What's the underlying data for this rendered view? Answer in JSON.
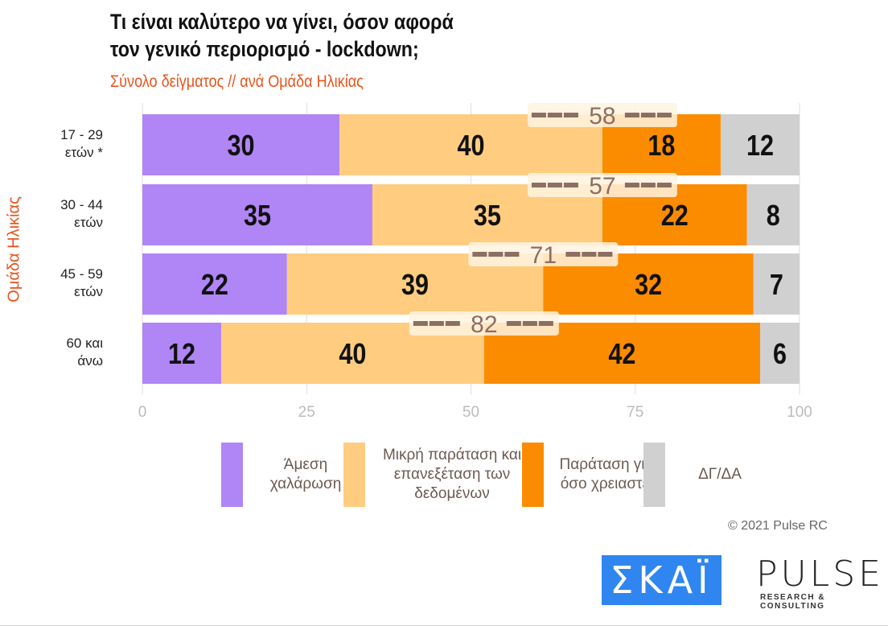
{
  "title_line1": "Τι είναι καλύτερο να γίνει, όσον αφορά",
  "title_line2": "τον γενικό περιορισμό - lockdown;",
  "subtitle": "Σύνολο δείγματος // ανά Ομάδα Ηλικίας",
  "copyright": "© 2021 Pulse RC",
  "logos": {
    "skai": "ΣΚΑΪ",
    "pulse": "PULSE",
    "pulse_sub": "RESEARCH & CONSULTING",
    "watermark": "PULSE"
  },
  "chart_data": {
    "type": "bar",
    "orientation": "horizontal",
    "stacked": true,
    "ylabel": "Ομάδα Ηλικίας",
    "categories": [
      "17 - 29\nετών *",
      "30 - 44\nετών",
      "45 - 59\nετών",
      "60 και\nάνω"
    ],
    "series": [
      {
        "name": "Άμεση χαλάρωση",
        "color": "#b085f5",
        "values": [
          30,
          35,
          22,
          12
        ]
      },
      {
        "name": "Μικρή παράταση και επανεξέταση των δεδομένων",
        "color": "#ffcc80",
        "values": [
          40,
          35,
          39,
          40
        ]
      },
      {
        "name": "Παράταση για όσο χρειαστεί",
        "color": "#fb8c00",
        "values": [
          18,
          22,
          32,
          42
        ]
      },
      {
        "name": "ΔΓ/ΔΑ",
        "color": "#d0d0d0",
        "values": [
          12,
          8,
          7,
          6
        ]
      }
    ],
    "bracket_totals": [
      58,
      57,
      71,
      82
    ],
    "xlim": [
      0,
      100
    ],
    "xticks": [
      0,
      25,
      50,
      75,
      100
    ],
    "grid": true,
    "legend": "bottom"
  }
}
